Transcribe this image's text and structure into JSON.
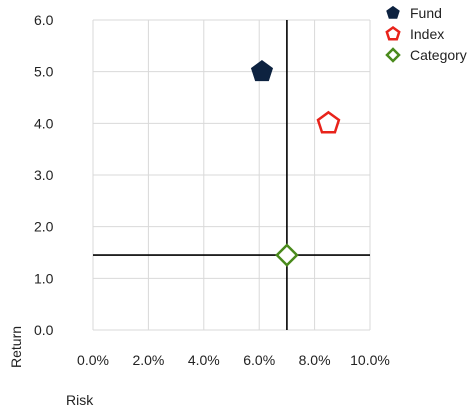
{
  "chart_data": {
    "type": "scatter",
    "title": "",
    "xlabel": "Risk",
    "ylabel": "Return",
    "xlim": [
      0,
      10
    ],
    "ylim": [
      0,
      6
    ],
    "x_ticks": [
      0,
      2,
      4,
      6,
      8,
      10
    ],
    "x_tick_labels": [
      "0.0%",
      "2.0%",
      "4.0%",
      "6.0%",
      "8.0%",
      "10.0%"
    ],
    "y_ticks": [
      0,
      1,
      2,
      3,
      4,
      5,
      6
    ],
    "y_tick_labels": [
      "0.0",
      "1.0",
      "2.0",
      "3.0",
      "4.0",
      "5.0",
      "6.0"
    ],
    "grid": true,
    "legend_position": "top-right",
    "series": [
      {
        "name": "Fund",
        "marker": "pentagon-filled",
        "color": "#0d2240",
        "x": 6.1,
        "y": 5.0
      },
      {
        "name": "Index",
        "marker": "pentagon-open",
        "color": "#e8231b",
        "x": 8.5,
        "y": 4.0
      },
      {
        "name": "Category",
        "marker": "diamond-open",
        "color": "#4a8a1c",
        "x": 7.0,
        "y": 1.45
      }
    ],
    "reference_lines": {
      "x": 7.0,
      "y": 1.45,
      "color": "#000000"
    }
  }
}
